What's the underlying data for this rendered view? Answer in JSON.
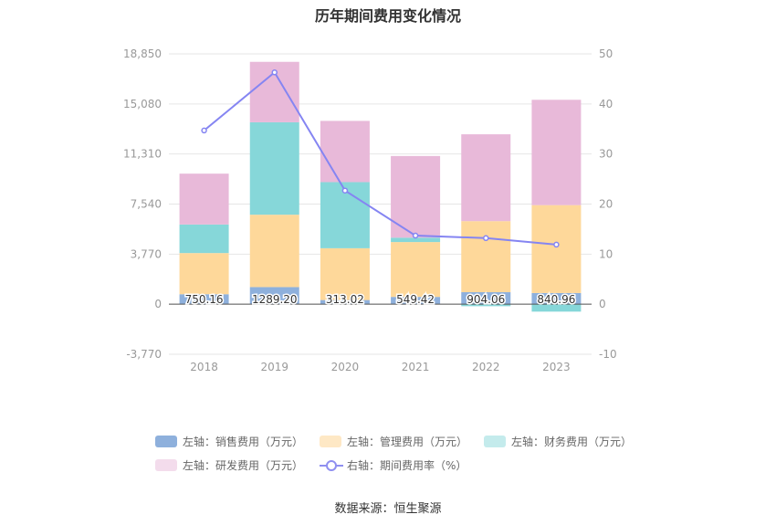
{
  "title": "历年期间费用变化情况",
  "source": "数据来源：恒生聚源",
  "chart_data": {
    "type": "bar",
    "stacked": true,
    "categories": [
      "2018",
      "2019",
      "2020",
      "2021",
      "2022",
      "2023"
    ],
    "left_axis": {
      "ylim": [
        -3770,
        18850
      ],
      "ticks": [
        "18,850",
        "15,080",
        "11,310",
        "7,540",
        "3,770",
        "0",
        "-3,770"
      ]
    },
    "right_axis": {
      "ylim": [
        -10,
        50
      ],
      "ticks": [
        "50",
        "40",
        "30",
        "20",
        "10",
        "0",
        "-10"
      ]
    },
    "series": [
      {
        "name": "左轴：销售费用（万元）",
        "color": "#8eb0dc",
        "values": [
          750.16,
          1289.2,
          313.02,
          549.42,
          904.06,
          840.96
        ],
        "labels": [
          "750.16",
          "1289.20",
          "313.02",
          "549.42",
          "904.06",
          "840.96"
        ]
      },
      {
        "name": "左轴：管理费用（万元）",
        "color": "#fed89a",
        "values": [
          3100,
          5450,
          3900,
          4130,
          5350,
          6620
        ]
      },
      {
        "name": "左轴：财务费用（万元）",
        "color": "#86d7d9",
        "values": [
          2150,
          6960,
          4980,
          330,
          -150,
          -560
        ]
      },
      {
        "name": "左轴：研发费用（万元）",
        "color": "#e8b9d9",
        "values": [
          3830,
          4550,
          4610,
          6150,
          6540,
          7930
        ]
      },
      {
        "name": "右轴：期间费用率（%）",
        "type": "line",
        "axis": "right",
        "color": "#8585f2",
        "values": [
          34.7,
          46.3,
          22.7,
          13.7,
          13.2,
          11.9
        ]
      }
    ],
    "legend_position": "bottom",
    "grid": true
  }
}
